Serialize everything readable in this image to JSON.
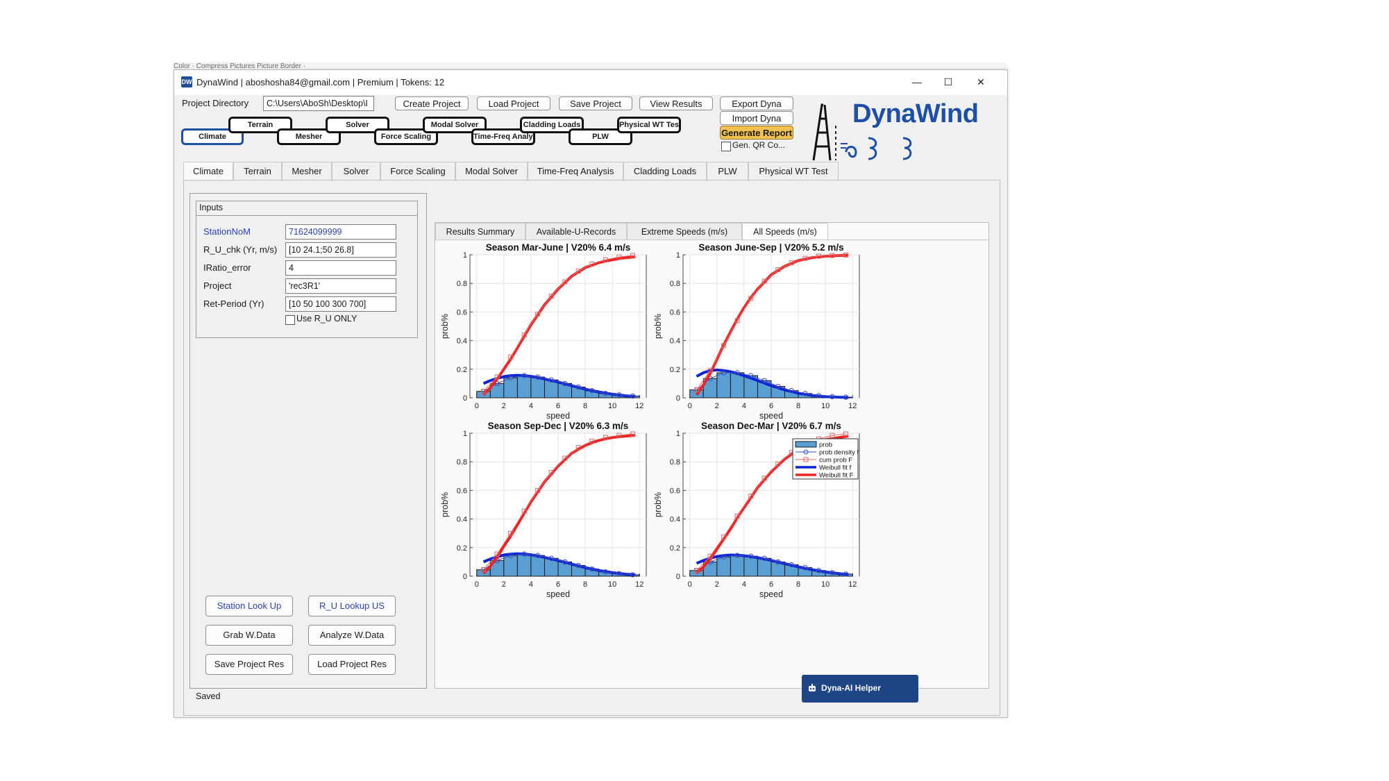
{
  "window": {
    "app_name": "DynaWind",
    "title_user": "aboshosha84@gmail.com",
    "title_plan": "Premium",
    "title_tokens": "Tokens: 12",
    "title_sep": "|",
    "controls": [
      "—",
      "☐",
      "✕"
    ]
  },
  "behind_text": "Color ·          Compress Pictures                                                                Picture Border ·",
  "toolbar": {
    "project_dir_label": "Project Directory",
    "project_dir_value": "C:\\Users\\AboSh\\Desktop\\I",
    "create_project": "Create Project",
    "load_project": "Load Project",
    "save_project": "Save Project",
    "view_results": "View Results",
    "export_dyna": "Export Dyna",
    "import_dyna": "Import Dyna",
    "generate_report": "Generate Report",
    "gen_qr": "Gen. QR Co...",
    "logo_text": "DynaWind",
    "accent_yellow": "#f2c14e"
  },
  "flow_steps": [
    "Climate",
    "Terrain",
    "Mesher",
    "Solver",
    "Force Scaling",
    "Modal Solver",
    "Time-Freq Analysis",
    "Cladding Loads",
    "PLW",
    "Physical WT Test"
  ],
  "tabs": [
    "Climate",
    "Terrain",
    "Mesher",
    "Solver",
    "Force Scaling",
    "Modal Solver",
    "Time-Freq Analysis",
    "Cladding Loads",
    "PLW",
    "Physical WT Test"
  ],
  "inputs": {
    "title": "Inputs",
    "rows": [
      {
        "label": "StationNoM",
        "value": "71624099999"
      },
      {
        "label": "R_U_chk (Yr, m/s)",
        "value": "[10 24.1;50 26.8]"
      },
      {
        "label": "IRatio_error",
        "value": "4"
      },
      {
        "label": "Project",
        "value": "'rec3R1'"
      },
      {
        "label": "Ret-Period (Yr)",
        "value": "[10 50 100 300 700]"
      }
    ],
    "use_ru_only": "Use R_U ONLY"
  },
  "actions": {
    "station_lookup": "Station Look Up",
    "ru_lookup": "R_U Lookup US",
    "grab_wdata": "Grab W.Data",
    "analyze_wdata": "Analyze W.Data",
    "save_project_res": "Save Project Res",
    "load_project_res": "Load Project Res"
  },
  "result_tabs": [
    "Results Summary",
    "Available-U-Records",
    "Extreme Speeds (m/s)",
    "All Speeds (m/s)"
  ],
  "status": "Saved",
  "helper_button": "Dyna-AI Helper",
  "colors": {
    "bar": "#5a9fd4",
    "weibull_pdf": "#0a22d8",
    "weibull_cdf": "#ee2222",
    "prob_density": "#3a4fb8",
    "cum_prob": "#e06666"
  },
  "chart_data": [
    {
      "type": "bar",
      "title": "Season Mar-June | V20% 6.4 m/s",
      "xlabel": "speed",
      "ylabel": "prob%",
      "xlim": [
        -0.5,
        12.5
      ],
      "ylim": [
        0,
        1
      ],
      "xticks": [
        0,
        2,
        4,
        6,
        8,
        10,
        12
      ],
      "yticks": [
        0,
        0.2,
        0.4,
        0.6,
        0.8,
        1
      ],
      "grid": true,
      "bins_x": [
        0.5,
        1.5,
        2.5,
        3.5,
        4.5,
        5.5,
        6.5,
        7.5,
        8.5,
        9.5,
        10.5,
        11.5
      ],
      "prob": [
        0.045,
        0.1,
        0.14,
        0.155,
        0.145,
        0.125,
        0.1,
        0.075,
        0.05,
        0.03,
        0.02,
        0.012
      ],
      "cum_prob": [
        0.045,
        0.145,
        0.285,
        0.44,
        0.585,
        0.71,
        0.81,
        0.885,
        0.935,
        0.965,
        0.985,
        0.995
      ],
      "weibull_x": [
        0.5,
        1.0,
        1.5,
        2.0,
        2.5,
        3.0,
        3.5,
        4.0,
        4.5,
        5.0,
        6.0,
        7.0,
        8.0,
        9.0,
        10.0,
        11.0,
        11.7
      ],
      "weibull_pdf": [
        0.1,
        0.12,
        0.135,
        0.148,
        0.155,
        0.157,
        0.155,
        0.15,
        0.142,
        0.132,
        0.11,
        0.085,
        0.06,
        0.04,
        0.025,
        0.014,
        0.009
      ],
      "weibull_cdf": [
        0.02,
        0.07,
        0.13,
        0.2,
        0.27,
        0.35,
        0.43,
        0.51,
        0.58,
        0.65,
        0.76,
        0.85,
        0.91,
        0.945,
        0.965,
        0.98,
        0.985
      ]
    },
    {
      "type": "bar",
      "title": "Season June-Sep | V20% 5.2 m/s",
      "xlabel": "speed",
      "ylabel": "prob%",
      "xlim": [
        -0.5,
        12.5
      ],
      "ylim": [
        0,
        1
      ],
      "xticks": [
        0,
        2,
        4,
        6,
        8,
        10,
        12
      ],
      "yticks": [
        0,
        0.2,
        0.4,
        0.6,
        0.8,
        1
      ],
      "grid": true,
      "bins_x": [
        0.5,
        1.5,
        2.5,
        3.5,
        4.5,
        5.5,
        6.5,
        7.5,
        8.5,
        9.5,
        10.5,
        11.5
      ],
      "prob": [
        0.055,
        0.135,
        0.175,
        0.175,
        0.155,
        0.12,
        0.08,
        0.05,
        0.03,
        0.015,
        0.008,
        0.004
      ],
      "cum_prob": [
        0.055,
        0.19,
        0.365,
        0.54,
        0.695,
        0.815,
        0.895,
        0.945,
        0.975,
        0.99,
        0.995,
        0.998
      ],
      "weibull_x": [
        0.5,
        1.0,
        1.5,
        2.0,
        2.5,
        3.0,
        3.5,
        4.0,
        4.5,
        5.0,
        6.0,
        7.0,
        8.0,
        9.0,
        10.0,
        11.0,
        11.7
      ],
      "weibull_pdf": [
        0.15,
        0.175,
        0.19,
        0.195,
        0.19,
        0.182,
        0.17,
        0.155,
        0.138,
        0.12,
        0.085,
        0.055,
        0.032,
        0.017,
        0.008,
        0.004,
        0.002
      ],
      "weibull_cdf": [
        0.02,
        0.09,
        0.17,
        0.27,
        0.37,
        0.46,
        0.55,
        0.63,
        0.7,
        0.76,
        0.86,
        0.92,
        0.96,
        0.98,
        0.99,
        0.995,
        0.997
      ]
    },
    {
      "type": "bar",
      "title": "Season Sep-Dec | V20% 6.3 m/s",
      "xlabel": "speed",
      "ylabel": "prob%",
      "xlim": [
        -0.5,
        12.5
      ],
      "ylim": [
        0,
        1
      ],
      "xticks": [
        0,
        2,
        4,
        6,
        8,
        10,
        12
      ],
      "yticks": [
        0,
        0.2,
        0.4,
        0.6,
        0.8,
        1
      ],
      "grid": true,
      "bins_x": [
        0.5,
        1.5,
        2.5,
        3.5,
        4.5,
        5.5,
        6.5,
        7.5,
        8.5,
        9.5,
        10.5,
        11.5
      ],
      "prob": [
        0.045,
        0.11,
        0.145,
        0.155,
        0.145,
        0.125,
        0.1,
        0.075,
        0.05,
        0.03,
        0.018,
        0.01
      ],
      "cum_prob": [
        0.045,
        0.155,
        0.3,
        0.455,
        0.6,
        0.725,
        0.825,
        0.9,
        0.945,
        0.97,
        0.985,
        0.995
      ],
      "weibull_x": [
        0.5,
        1.0,
        1.5,
        2.0,
        2.5,
        3.0,
        3.5,
        4.0,
        4.5,
        5.0,
        6.0,
        7.0,
        8.0,
        9.0,
        10.0,
        11.0,
        11.7
      ],
      "weibull_pdf": [
        0.1,
        0.12,
        0.135,
        0.148,
        0.155,
        0.157,
        0.155,
        0.15,
        0.142,
        0.132,
        0.11,
        0.085,
        0.06,
        0.04,
        0.025,
        0.014,
        0.009
      ],
      "weibull_cdf": [
        0.02,
        0.07,
        0.13,
        0.21,
        0.28,
        0.36,
        0.44,
        0.52,
        0.59,
        0.66,
        0.77,
        0.86,
        0.915,
        0.95,
        0.97,
        0.98,
        0.985
      ]
    },
    {
      "type": "bar",
      "title": "Season Dec-Mar | V20% 6.7 m/s",
      "xlabel": "speed",
      "ylabel": "prob%",
      "xlim": [
        -0.5,
        12.5
      ],
      "ylim": [
        0,
        1
      ],
      "xticks": [
        0,
        2,
        4,
        6,
        8,
        10,
        12
      ],
      "yticks": [
        0,
        0.2,
        0.4,
        0.6,
        0.8,
        1
      ],
      "grid": true,
      "legend_position": "top-right",
      "legend": [
        "prob",
        "prob density f",
        "cum prob F",
        "Weibull fit f",
        "Weibull fit F"
      ],
      "bins_x": [
        0.5,
        1.5,
        2.5,
        3.5,
        4.5,
        5.5,
        6.5,
        7.5,
        8.5,
        9.5,
        10.5,
        11.5
      ],
      "prob": [
        0.04,
        0.1,
        0.135,
        0.145,
        0.14,
        0.125,
        0.1,
        0.08,
        0.06,
        0.04,
        0.025,
        0.015
      ],
      "cum_prob": [
        0.04,
        0.14,
        0.275,
        0.42,
        0.56,
        0.685,
        0.785,
        0.865,
        0.925,
        0.96,
        0.985,
        0.995
      ],
      "weibull_x": [
        0.5,
        1.0,
        1.5,
        2.0,
        2.5,
        3.0,
        3.5,
        4.0,
        4.5,
        5.0,
        6.0,
        7.0,
        8.0,
        9.0,
        10.0,
        11.0,
        11.7
      ],
      "weibull_pdf": [
        0.09,
        0.11,
        0.125,
        0.138,
        0.145,
        0.148,
        0.147,
        0.143,
        0.137,
        0.13,
        0.11,
        0.088,
        0.066,
        0.046,
        0.03,
        0.018,
        0.012
      ],
      "weibull_cdf": [
        0.02,
        0.065,
        0.12,
        0.19,
        0.26,
        0.33,
        0.41,
        0.48,
        0.55,
        0.62,
        0.73,
        0.82,
        0.885,
        0.93,
        0.955,
        0.97,
        0.98
      ]
    }
  ]
}
